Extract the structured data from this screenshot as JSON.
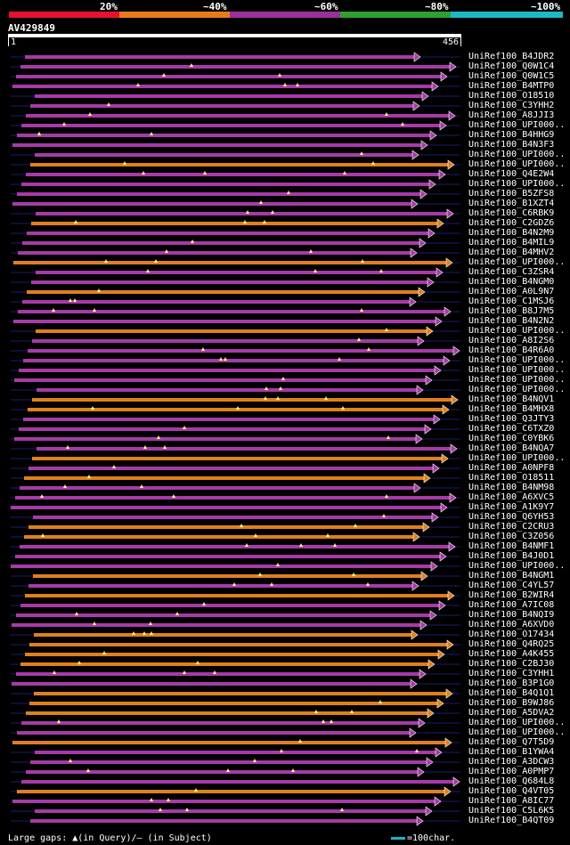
{
  "legend": {
    "labels": [
      "20%",
      "~40%",
      "~60%",
      "~80%",
      "~100%"
    ],
    "colors": [
      "#e8112f",
      "#e77b1a",
      "#9b2f9b",
      "#2f9f2f",
      "#1fb7c4"
    ]
  },
  "query": {
    "title": "AV429849",
    "start": "1",
    "end": "456"
  },
  "hits": [
    {
      "label": "UniRef100_B4JDR2",
      "color": "#a73aa8"
    },
    {
      "label": "UniRef100_Q0W1C4",
      "color": "#a73aa8"
    },
    {
      "label": "UniRef100_Q0W1C5",
      "color": "#a73aa8"
    },
    {
      "label": "UniRef100_B4MTP0",
      "color": "#a73aa8"
    },
    {
      "label": "UniRef100_O18510",
      "color": "#a73aa8"
    },
    {
      "label": "UniRef100_C3YHH2",
      "color": "#a73aa8"
    },
    {
      "label": "UniRef100_A8JJI3",
      "color": "#a73aa8"
    },
    {
      "label": "UniRef100_UPI000..",
      "color": "#a73aa8"
    },
    {
      "label": "UniRef100_B4HHG9",
      "color": "#a73aa8"
    },
    {
      "label": "UniRef100_B4N3F3",
      "color": "#a73aa8"
    },
    {
      "label": "UniRef100_UPI000..",
      "color": "#a73aa8"
    },
    {
      "label": "UniRef100_UPI000..",
      "color": "#e0801c"
    },
    {
      "label": "UniRef100_Q4E2W4",
      "color": "#a73aa8"
    },
    {
      "label": "UniRef100_UPI000..",
      "color": "#a73aa8"
    },
    {
      "label": "UniRef100_B5ZFS8",
      "color": "#a73aa8"
    },
    {
      "label": "UniRef100_B1XZT4",
      "color": "#a73aa8"
    },
    {
      "label": "UniRef100_C6RBK9",
      "color": "#a73aa8"
    },
    {
      "label": "UniRef100_C2GDZ6",
      "color": "#e0801c"
    },
    {
      "label": "UniRef100_B4N2M9",
      "color": "#a73aa8"
    },
    {
      "label": "UniRef100_B4MIL9",
      "color": "#a73aa8"
    },
    {
      "label": "UniRef100_B4MHV2",
      "color": "#a73aa8"
    },
    {
      "label": "UniRef100_UPI000..",
      "color": "#e0801c"
    },
    {
      "label": "UniRef100_C3ZSR4",
      "color": "#a73aa8"
    },
    {
      "label": "UniRef100_B4NGM0",
      "color": "#a73aa8"
    },
    {
      "label": "UniRef100_A0L9N7",
      "color": "#e0801c"
    },
    {
      "label": "UniRef100_C1MSJ6",
      "color": "#a73aa8"
    },
    {
      "label": "UniRef100_B8J7M5",
      "color": "#a73aa8"
    },
    {
      "label": "UniRef100_B4N2N2",
      "color": "#a73aa8"
    },
    {
      "label": "UniRef100_UPI000..",
      "color": "#e0801c"
    },
    {
      "label": "UniRef100_A8I2S6",
      "color": "#a73aa8"
    },
    {
      "label": "UniRef100_B4R6A0",
      "color": "#a73aa8"
    },
    {
      "label": "UniRef100_UPI000..",
      "color": "#a73aa8"
    },
    {
      "label": "UniRef100_UPI000..",
      "color": "#a73aa8"
    },
    {
      "label": "UniRef100_UPI000..",
      "color": "#a73aa8"
    },
    {
      "label": "UniRef100_UPI000..",
      "color": "#a73aa8"
    },
    {
      "label": "UniRef100_B4NQV1",
      "color": "#e0801c"
    },
    {
      "label": "UniRef100_B4MHX8",
      "color": "#e0801c"
    },
    {
      "label": "UniRef100_Q3JTY3",
      "color": "#a73aa8"
    },
    {
      "label": "UniRef100_C6TXZ0",
      "color": "#a73aa8"
    },
    {
      "label": "UniRef100_C0YBK6",
      "color": "#a73aa8"
    },
    {
      "label": "UniRef100_B4NQA7",
      "color": "#a73aa8"
    },
    {
      "label": "UniRef100_UPI000..",
      "color": "#e0801c"
    },
    {
      "label": "UniRef100_A0NPF8",
      "color": "#a73aa8"
    },
    {
      "label": "UniRef100_O18511",
      "color": "#e0801c"
    },
    {
      "label": "UniRef100_B4NM98",
      "color": "#a73aa8"
    },
    {
      "label": "UniRef100_A6XVC5",
      "color": "#a73aa8"
    },
    {
      "label": "UniRef100_A1K9Y7",
      "color": "#a73aa8"
    },
    {
      "label": "UniRef100_Q6YH53",
      "color": "#a73aa8"
    },
    {
      "label": "UniRef100_C2CRU3",
      "color": "#e0801c"
    },
    {
      "label": "UniRef100_C3Z056",
      "color": "#e0801c"
    },
    {
      "label": "UniRef100_B4NMF1",
      "color": "#a73aa8"
    },
    {
      "label": "UniRef100_B4J0D1",
      "color": "#a73aa8"
    },
    {
      "label": "UniRef100_UPI000..",
      "color": "#a73aa8"
    },
    {
      "label": "UniRef100_B4NGM1",
      "color": "#e0801c"
    },
    {
      "label": "UniRef100_C4YL57",
      "color": "#a73aa8"
    },
    {
      "label": "UniRef100_B2WIR4",
      "color": "#e0801c"
    },
    {
      "label": "UniRef100_A7IC08",
      "color": "#a73aa8"
    },
    {
      "label": "UniRef100_B4NQI9",
      "color": "#a73aa8"
    },
    {
      "label": "UniRef100_A6XVD0",
      "color": "#a73aa8"
    },
    {
      "label": "UniRef100_O17434",
      "color": "#e0801c"
    },
    {
      "label": "UniRef100_Q4RQ25",
      "color": "#e0801c"
    },
    {
      "label": "UniRef100_A4K455",
      "color": "#e0801c"
    },
    {
      "label": "UniRef100_C2BJ30",
      "color": "#e0801c"
    },
    {
      "label": "UniRef100_C3YHH1",
      "color": "#a73aa8"
    },
    {
      "label": "UniRef100_B3P1G0",
      "color": "#a73aa8"
    },
    {
      "label": "UniRef100_B4Q1Q1",
      "color": "#e0801c"
    },
    {
      "label": "UniRef100_B9WJ86",
      "color": "#e0801c"
    },
    {
      "label": "UniRef100_A5DVA2",
      "color": "#e0801c"
    },
    {
      "label": "UniRef100_UPI000..",
      "color": "#a73aa8"
    },
    {
      "label": "UniRef100_UPI000..",
      "color": "#a73aa8"
    },
    {
      "label": "UniRef100_Q7T5D9",
      "color": "#e0801c"
    },
    {
      "label": "UniRef100_B1YWA4",
      "color": "#a73aa8"
    },
    {
      "label": "UniRef100_A3DCW3",
      "color": "#a73aa8"
    },
    {
      "label": "UniRef100_A0PMP7",
      "color": "#a73aa8"
    },
    {
      "label": "UniRef100_Q684L8",
      "color": "#a73aa8"
    },
    {
      "label": "UniRef100_Q4VT05",
      "color": "#e0801c"
    },
    {
      "label": "UniRef100_A8IC77",
      "color": "#a73aa8"
    },
    {
      "label": "UniRef100_C5L6K5",
      "color": "#a73aa8"
    },
    {
      "label": "UniRef100_B4QT09",
      "color": "#a73aa8"
    }
  ],
  "footer": {
    "gaps_text": "Large gaps: ▲(in Query)/— (in Subject)",
    "scale_text": "=100char."
  }
}
